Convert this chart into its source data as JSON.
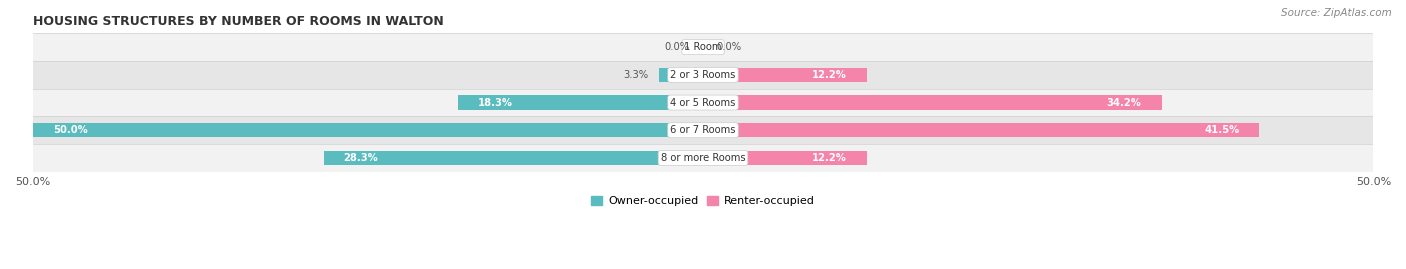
{
  "title": "HOUSING STRUCTURES BY NUMBER OF ROOMS IN WALTON",
  "source": "Source: ZipAtlas.com",
  "categories": [
    "1 Room",
    "2 or 3 Rooms",
    "4 or 5 Rooms",
    "6 or 7 Rooms",
    "8 or more Rooms"
  ],
  "owner_values": [
    0.0,
    3.3,
    18.3,
    50.0,
    28.3
  ],
  "renter_values": [
    0.0,
    12.2,
    34.2,
    41.5,
    12.2
  ],
  "owner_color": "#5bbcbf",
  "renter_color": "#f484aa",
  "row_bg_light": "#f2f2f2",
  "row_bg_dark": "#e6e6e6",
  "row_border": "#d0d0d0",
  "label_color": "#555555",
  "title_color": "#333333",
  "axis_max": 50.0,
  "bar_height": 0.52,
  "figsize": [
    14.06,
    2.69
  ],
  "dpi": 100
}
